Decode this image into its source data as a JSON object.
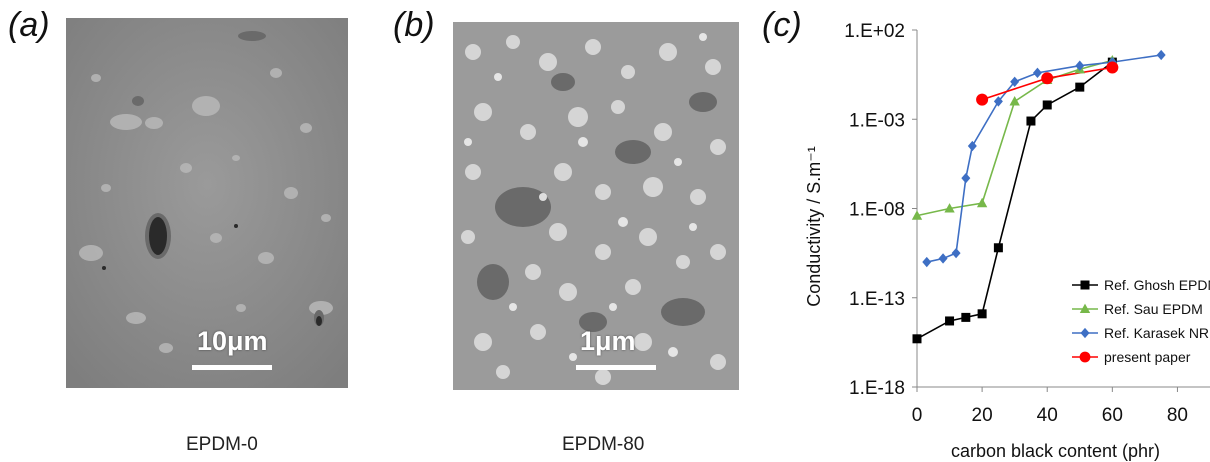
{
  "panels": [
    {
      "letter": "(a)",
      "scale_label": "10μm",
      "caption": "EPDM-0"
    },
    {
      "letter": "(b)",
      "scale_label": "1μm",
      "caption": "EPDM-80"
    },
    {
      "letter": "(c)"
    }
  ],
  "colors": {
    "ghosh": "#000000",
    "sau": "#77b84a",
    "karasek": "#3e6fc4",
    "present": "#ff0000",
    "sem_a_bg": "#8a8a8a",
    "sem_b_bg": "#9a9a9a"
  },
  "chart_data": {
    "type": "line",
    "xlabel": "carbon black content (phr)",
    "ylabel": "Conductivity / S.m⁻¹",
    "xlim": [
      0,
      90
    ],
    "ylim": [
      -18,
      2
    ],
    "y_scale": "log",
    "x_ticks": [
      0,
      20,
      40,
      60,
      80
    ],
    "y_ticks": [
      {
        "value": 2,
        "label": "1.E+02"
      },
      {
        "value": -3,
        "label": "1.E-03"
      },
      {
        "value": -8,
        "label": "1.E-08"
      },
      {
        "value": -13,
        "label": "1.E-13"
      },
      {
        "value": -18,
        "label": "1.E-18"
      }
    ],
    "legend_position": "bottom-right",
    "series": [
      {
        "name": "Ref. Ghosh EPDM",
        "marker": "square",
        "color": "#000000",
        "x": [
          0,
          10,
          15,
          20,
          25,
          35,
          40,
          50,
          60
        ],
        "y": [
          -15.3,
          -14.3,
          -14.1,
          -13.9,
          -10.2,
          -3.1,
          -2.2,
          -1.2,
          0.2
        ]
      },
      {
        "name": "Ref. Sau EPDM",
        "marker": "triangle",
        "color": "#77b84a",
        "x": [
          0,
          10,
          20,
          30,
          40,
          50,
          60
        ],
        "y": [
          -8.4,
          -8.0,
          -7.7,
          -2.0,
          -0.8,
          -0.2,
          0.3
        ]
      },
      {
        "name": "Ref. Karasek NR",
        "marker": "diamond",
        "color": "#3e6fc4",
        "x": [
          3,
          8,
          12,
          15,
          17,
          25,
          30,
          37,
          50,
          60,
          75
        ],
        "y": [
          -11.0,
          -10.8,
          -10.5,
          -6.3,
          -4.5,
          -2.0,
          -0.9,
          -0.4,
          0.0,
          0.2,
          0.6
        ]
      },
      {
        "name": "present paper",
        "marker": "circle",
        "color": "#ff0000",
        "x": [
          20,
          40,
          60
        ],
        "y": [
          -1.9,
          -0.7,
          -0.1
        ]
      }
    ]
  }
}
